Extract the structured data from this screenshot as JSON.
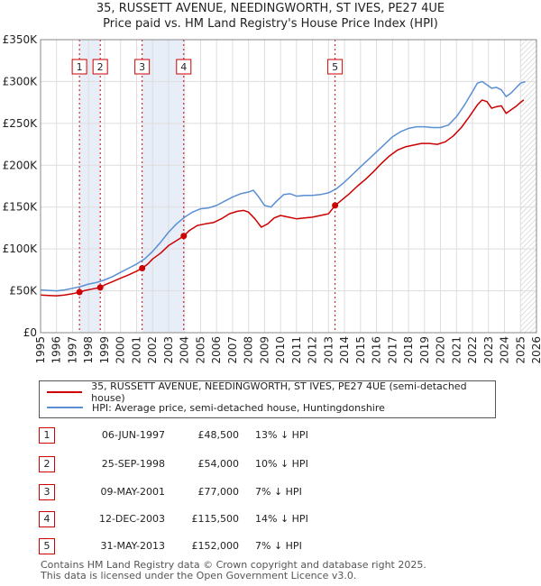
{
  "title_line1": "35, RUSSETT AVENUE, NEEDINGWORTH, ST IVES, PE27 4UE",
  "title_line2": "Price paid vs. HM Land Registry's House Price Index (HPI)",
  "colors": {
    "property": "#cc0000",
    "hpi": "#5b8fd4",
    "shade": "#e8eef8",
    "marker_box": "#cc0000"
  },
  "chart_data": {
    "type": "line",
    "title": "35, RUSSETT AVENUE, NEEDINGWORTH, ST IVES, PE27 4UE — Price paid vs. HM Land Registry's House Price Index (HPI)",
    "xlim": [
      1995,
      2026
    ],
    "ylim": [
      0,
      350000
    ],
    "y_ticks": [
      0,
      50000,
      100000,
      150000,
      200000,
      250000,
      300000,
      350000
    ],
    "y_tick_labels": [
      "£0",
      "£50K",
      "£100K",
      "£150K",
      "£200K",
      "£250K",
      "£300K",
      "£350K"
    ],
    "x_ticks": [
      1995,
      1996,
      1997,
      1998,
      1999,
      2000,
      2001,
      2002,
      2003,
      2004,
      2005,
      2006,
      2007,
      2008,
      2009,
      2010,
      2011,
      2012,
      2013,
      2014,
      2015,
      2016,
      2017,
      2018,
      2019,
      2020,
      2021,
      2022,
      2023,
      2024,
      2025,
      2026
    ],
    "x_tick_labels": [
      "1995",
      "1996",
      "1997",
      "1998",
      "1999",
      "2000",
      "2001",
      "2002",
      "2003",
      "2004",
      "2005",
      "2006",
      "2007",
      "2008",
      "2009",
      "2010",
      "2011",
      "2012",
      "2013",
      "2014",
      "2015",
      "2016",
      "2017",
      "2018",
      "2019",
      "2020",
      "2021",
      "2022",
      "2023",
      "2024",
      "2025",
      "2026"
    ],
    "shaded_spans": [
      [
        1997.43,
        1998.73
      ],
      [
        2001.35,
        2003.95
      ]
    ],
    "projection_start": 2025.0,
    "series": [
      {
        "name": "35, RUSSETT AVENUE, NEEDINGWORTH, ST IVES, PE27 4UE (semi-detached house)",
        "color": "#cc0000",
        "x": [
          1995,
          1995.5,
          1996,
          1996.5,
          1997,
          1997.43,
          1997.8,
          1998.2,
          1998.73,
          1999,
          1999.5,
          2000,
          2000.5,
          2001,
          2001.35,
          2001.7,
          2002,
          2002.5,
          2003,
          2003.5,
          2003.95,
          2004.3,
          2004.8,
          2005.3,
          2005.8,
          2006.3,
          2006.8,
          2007.3,
          2007.7,
          2008,
          2008.4,
          2008.8,
          2009.2,
          2009.6,
          2010,
          2010.5,
          2011,
          2011.5,
          2012,
          2012.5,
          2013,
          2013.41,
          2013.8,
          2014.3,
          2014.8,
          2015.3,
          2015.8,
          2016.3,
          2016.8,
          2017.3,
          2017.8,
          2018.3,
          2018.8,
          2019.3,
          2019.8,
          2020.3,
          2020.8,
          2021.3,
          2021.8,
          2022.3,
          2022.6,
          2022.9,
          2023.2,
          2023.5,
          2023.8,
          2024.1,
          2024.4,
          2024.7,
          2025.0,
          2025.2
        ],
        "y": [
          45000,
          44500,
          44000,
          45000,
          46500,
          48500,
          50500,
          52000,
          54000,
          57000,
          61000,
          65000,
          69000,
          73500,
          77000,
          82000,
          88000,
          95000,
          104000,
          110000,
          115500,
          122000,
          128000,
          130000,
          131500,
          136000,
          142000,
          145000,
          146000,
          144000,
          136000,
          126000,
          130000,
          137000,
          140000,
          138000,
          136000,
          137000,
          138000,
          140000,
          142000,
          152000,
          158000,
          166000,
          175000,
          183000,
          192000,
          202000,
          211000,
          218000,
          222000,
          224000,
          226000,
          226000,
          225000,
          228000,
          235000,
          245000,
          258000,
          272000,
          278000,
          276000,
          268000,
          270000,
          271000,
          262000,
          266000,
          270000,
          275000,
          278000
        ]
      },
      {
        "name": "HPI: Average price, semi-detached house, Huntingdonshire",
        "color": "#5b8fd4",
        "x": [
          1995,
          1995.5,
          1996,
          1996.5,
          1997,
          1997.5,
          1998,
          1998.5,
          1999,
          1999.5,
          2000,
          2000.5,
          2001,
          2001.5,
          2002,
          2002.5,
          2003,
          2003.5,
          2004,
          2004.5,
          2005,
          2005.5,
          2006,
          2006.5,
          2007,
          2007.5,
          2008,
          2008.3,
          2008.6,
          2009,
          2009.4,
          2009.8,
          2010.2,
          2010.6,
          2011,
          2011.5,
          2012,
          2012.5,
          2013,
          2013.5,
          2014,
          2014.5,
          2015,
          2015.5,
          2016,
          2016.5,
          2017,
          2017.5,
          2018,
          2018.5,
          2019,
          2019.5,
          2020,
          2020.5,
          2021,
          2021.5,
          2022,
          2022.3,
          2022.6,
          2022.9,
          2023.2,
          2023.5,
          2023.8,
          2024.1,
          2024.4,
          2024.7,
          2025.0,
          2025.3
        ],
        "y": [
          51000,
          50500,
          50000,
          51000,
          53000,
          55000,
          58000,
          60000,
          63000,
          67000,
          72000,
          77000,
          82000,
          88000,
          97000,
          108000,
          120000,
          130000,
          138000,
          144000,
          148000,
          149000,
          152000,
          157000,
          162000,
          166000,
          168000,
          170000,
          163000,
          152000,
          150000,
          158000,
          165000,
          166000,
          163000,
          164000,
          164000,
          165000,
          167000,
          172000,
          180000,
          189000,
          198000,
          207000,
          216000,
          225000,
          234000,
          240000,
          244000,
          246000,
          246000,
          245000,
          245000,
          248000,
          258000,
          272000,
          288000,
          298000,
          300000,
          296000,
          292000,
          293000,
          290000,
          282000,
          286000,
          292000,
          298000,
          300000
        ]
      }
    ],
    "sales": [
      {
        "label": "1",
        "x": 1997.43,
        "price": 48500
      },
      {
        "label": "2",
        "x": 1998.73,
        "price": 54000
      },
      {
        "label": "3",
        "x": 2001.35,
        "price": 77000
      },
      {
        "label": "4",
        "x": 2003.95,
        "price": 115500
      },
      {
        "label": "5",
        "x": 2013.41,
        "price": 152000
      }
    ]
  },
  "legend": {
    "property": "35, RUSSETT AVENUE, NEEDINGWORTH, ST IVES, PE27 4UE (semi-detached house)",
    "hpi": "HPI: Average price, semi-detached house, Huntingdonshire"
  },
  "transactions": [
    {
      "num": "1",
      "date": "06-JUN-1997",
      "price": "£48,500",
      "hpi": "13% ↓ HPI"
    },
    {
      "num": "2",
      "date": "25-SEP-1998",
      "price": "£54,000",
      "hpi": "10% ↓ HPI"
    },
    {
      "num": "3",
      "date": "09-MAY-2001",
      "price": "£77,000",
      "hpi": "7% ↓ HPI"
    },
    {
      "num": "4",
      "date": "12-DEC-2003",
      "price": "£115,500",
      "hpi": "14% ↓ HPI"
    },
    {
      "num": "5",
      "date": "31-MAY-2013",
      "price": "£152,000",
      "hpi": "7% ↓ HPI"
    }
  ],
  "footer_line1": "Contains HM Land Registry data © Crown copyright and database right 2025.",
  "footer_line2": "This data is licensed under the Open Government Licence v3.0."
}
